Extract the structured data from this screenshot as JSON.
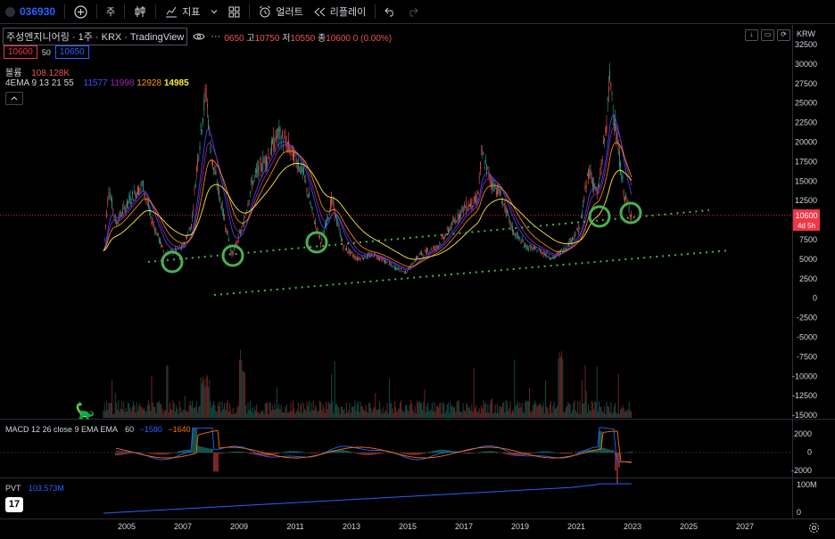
{
  "toolbar": {
    "symbol": "036930",
    "interval": "주",
    "indicators_label": "지표",
    "alerts_label": "얼러트",
    "replay_label": "리플레이"
  },
  "header": {
    "title": "주성엔지니어링 · 1주 · KRX · TradingView",
    "ohlc_open_partial": "0650",
    "high_label": "고",
    "high": "10750",
    "low_label": "저",
    "low": "10550",
    "close_label": "종",
    "close": "10600",
    "change": "0 (0.00%)"
  },
  "price_boxes": {
    "bid": "10600",
    "spread": "50",
    "ask": "10650"
  },
  "volume_legend": {
    "label": "볼륨",
    "value": "108.128K"
  },
  "ema_legend": {
    "label": "4EMA 9 13 21 55",
    "v1": "11577",
    "v2": "11998",
    "v3": "12928",
    "v4": "14985",
    "c1": "#3f51ff",
    "c2": "#9c27b0",
    "c3": "#ff9800",
    "c4": "#ffeb3b"
  },
  "currency": "KRW",
  "price_axis": [
    "32500",
    "30000",
    "27500",
    "25000",
    "22500",
    "20000",
    "17500",
    "15000",
    "12500",
    "10000",
    "7500",
    "5000",
    "2500",
    "0",
    "-2500",
    "-5000",
    "-7500",
    "-10000",
    "-12500",
    "-15000"
  ],
  "last_price": {
    "value": "10600",
    "countdown": "4d 5h",
    "color": "#f23645"
  },
  "macd": {
    "label": "MACD 12 26 close 9 EMA EMA",
    "hist": "60",
    "macd": "−1580",
    "signal": "−1640",
    "axis": [
      "2000",
      "0",
      "-2000"
    ]
  },
  "pvt": {
    "label": "PVT",
    "value": "103.573M",
    "axis": [
      "100M",
      "0"
    ]
  },
  "time_axis": [
    "2005",
    "2007",
    "2009",
    "2011",
    "2013",
    "2015",
    "2017",
    "2019",
    "2021",
    "2023",
    "2025",
    "2027"
  ],
  "colors": {
    "up": "#26a69a",
    "down": "#ef5350",
    "trendline": "#4caf50",
    "macd_line": "#2962ff",
    "signal_line": "#ff6d00",
    "pvt_line": "#2962ff"
  }
}
